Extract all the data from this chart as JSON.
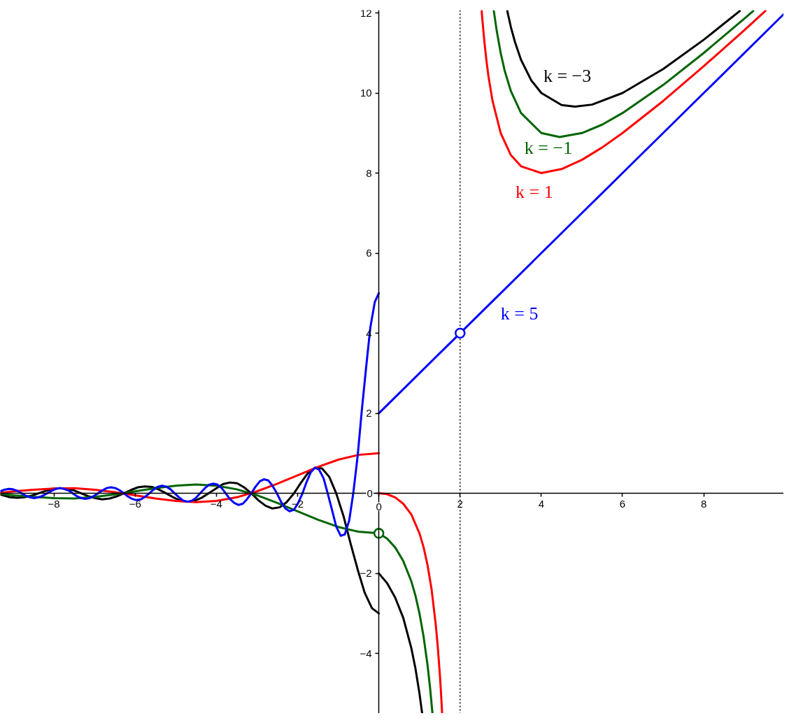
{
  "chart_data": {
    "type": "line",
    "xlim": [
      -9.32,
      9.97
    ],
    "ylim": [
      -5.5,
      12.07
    ],
    "xticks": [
      -8,
      -6,
      -4,
      -2,
      0,
      2,
      4,
      6,
      8
    ],
    "yticks": [
      -4,
      -2,
      0,
      2,
      4,
      6,
      8,
      10,
      12
    ],
    "ref_lines": [
      {
        "axis": "x",
        "value": 2,
        "color": "#000000",
        "line_style": "dotted"
      }
    ],
    "series": [
      {
        "color": "#000000",
        "x": [
          -9.32,
          -9.25,
          -9.08,
          -8.9,
          -8.73,
          -8.55,
          -8.38,
          -8.2,
          -8.03,
          -7.85,
          -7.68,
          -7.5,
          -7.33,
          -7.16,
          -6.98,
          -6.81,
          -6.63,
          -6.46,
          -6.28,
          -6.11,
          -5.93,
          -5.76,
          -5.59,
          -5.41,
          -5.24,
          -5.06,
          -4.89,
          -4.71,
          -4.54,
          -4.36,
          -4.19,
          -4.01,
          -3.84,
          -3.67,
          -3.49,
          -3.32,
          -3.14,
          -2.97,
          -2.79,
          -2.62,
          -2.44,
          -2.27,
          -2.09,
          -1.92,
          -1.75,
          -1.57,
          -1.4,
          -1.22,
          -1.05,
          -0.87,
          -0.7,
          -0.52,
          -0.35,
          -0.17,
          0
        ],
        "values": [
          -0.03,
          -0.05,
          -0.1,
          -0.11,
          -0.1,
          -0.06,
          0,
          0.06,
          0.11,
          0.13,
          0.11,
          0.07,
          0,
          -0.07,
          -0.12,
          -0.15,
          -0.13,
          -0.08,
          0,
          0.08,
          0.15,
          0.17,
          0.16,
          0.09,
          0,
          -0.1,
          -0.18,
          -0.21,
          -0.19,
          -0.11,
          0,
          0.12,
          0.23,
          0.27,
          0.25,
          0.15,
          0,
          -0.17,
          -0.31,
          -0.38,
          -0.35,
          -0.22,
          0,
          0.26,
          0.5,
          0.64,
          0.62,
          0.41,
          0,
          -0.57,
          -1.24,
          -1.91,
          -2.48,
          -2.87,
          -3
        ]
      },
      {
        "color": "#000000",
        "x": [
          0,
          0.2,
          0.4,
          0.6,
          0.8,
          0.9,
          1,
          1.065
        ],
        "values": [
          -2,
          -2.24,
          -2.6,
          -3.11,
          -3.87,
          -4.37,
          -5,
          -5.49
        ]
      },
      {
        "name": "k = −3",
        "color": "#000000",
        "x": [
          3.162,
          3.25,
          3.35,
          3.5,
          3.75,
          4,
          4.5,
          4.83,
          5.25,
          6,
          7,
          8,
          8.889
        ],
        "values": [
          12.05,
          11.65,
          11.28,
          10.83,
          10.32,
          10,
          9.7,
          9.66,
          9.71,
          10,
          10.6,
          11.33,
          12.05
        ]
      },
      {
        "color": "#006400",
        "x": [
          -9.32,
          -9,
          -8.5,
          -8,
          -7.5,
          -7,
          -6.5,
          -6,
          -5.5,
          -5,
          -4.5,
          -4,
          -3.5,
          -3,
          -2.5,
          -2,
          -1.5,
          -1,
          -0.5,
          0,
          0.2,
          0.4,
          0.6,
          0.8,
          0.9,
          1,
          1.1,
          1.2,
          1.26,
          1.319
        ],
        "values": [
          -0.01,
          -0.05,
          -0.09,
          -0.12,
          -0.13,
          -0.09,
          -0.03,
          0.05,
          0.13,
          0.19,
          0.22,
          0.19,
          0.1,
          -0.05,
          -0.24,
          -0.45,
          -0.66,
          -0.84,
          -0.96,
          -1,
          -1.13,
          -1.35,
          -1.69,
          -2.2,
          -2.55,
          -3,
          -3.57,
          -4.3,
          -4.85,
          -5.49
        ]
      },
      {
        "name": "k = −1",
        "color": "#006400",
        "x": [
          2.831,
          2.9,
          3,
          3.1,
          3.25,
          3.5,
          4,
          4.45,
          5,
          5.5,
          6,
          7,
          8,
          9,
          9.219
        ],
        "values": [
          12.05,
          11.57,
          11,
          10.55,
          10.05,
          9.5,
          9,
          8.9,
          9,
          9.21,
          9.5,
          10.2,
          11,
          11.86,
          12.05
        ]
      },
      {
        "color": "#ff0000",
        "x": [
          -9.32,
          -9,
          -8.5,
          -8,
          -7.5,
          -7,
          -6.5,
          -6,
          -5.5,
          -5,
          -4.5,
          -4,
          -3.5,
          -3,
          -2.5,
          -2,
          -1.5,
          -1,
          -0.5,
          0
        ],
        "values": [
          0.01,
          0.05,
          0.09,
          0.12,
          0.13,
          0.09,
          0.03,
          -0.05,
          -0.13,
          -0.19,
          -0.22,
          -0.19,
          -0.1,
          0.05,
          0.24,
          0.45,
          0.66,
          0.84,
          0.96,
          1
        ]
      },
      {
        "color": "#ff0000",
        "x": [
          0,
          0.2,
          0.4,
          0.6,
          0.8,
          1,
          1.1,
          1.2,
          1.3,
          1.4,
          1.45,
          1.5,
          1.53,
          1.558
        ],
        "values": [
          0,
          -0.02,
          -0.1,
          -0.26,
          -0.53,
          -1,
          -1.34,
          -1.8,
          -2.41,
          -3.27,
          -3.82,
          -4.5,
          -4.98,
          -5.49
        ]
      },
      {
        "name": "k = 1",
        "color": "#ff0000",
        "x": [
          2.532,
          2.55,
          2.6,
          2.65,
          2.7,
          2.8,
          3,
          3.25,
          3.5,
          4,
          4.5,
          5,
          5.5,
          6,
          7,
          8,
          9,
          9.518
        ],
        "values": [
          12.05,
          11.82,
          11.27,
          10.8,
          10.41,
          9.8,
          9,
          8.45,
          8.17,
          8,
          8.1,
          8.33,
          8.64,
          9,
          9.8,
          10.67,
          11.57,
          12.05
        ]
      },
      {
        "color": "#0000ff",
        "x": [
          -9.32,
          -9.22,
          -9.11,
          -9.01,
          -8.9,
          -8.8,
          -8.69,
          -8.59,
          -8.48,
          -8.38,
          -8.27,
          -8.17,
          -8.06,
          -7.96,
          -7.85,
          -7.75,
          -7.64,
          -7.54,
          -7.44,
          -7.33,
          -7.23,
          -7.12,
          -7.02,
          -6.91,
          -6.81,
          -6.7,
          -6.6,
          -6.49,
          -6.39,
          -6.28,
          -6.18,
          -6.07,
          -5.97,
          -5.86,
          -5.76,
          -5.65,
          -5.55,
          -5.45,
          -5.34,
          -5.24,
          -5.13,
          -5.03,
          -4.92,
          -4.82,
          -4.71,
          -4.61,
          -4.5,
          -4.4,
          -4.29,
          -4.19,
          -4.08,
          -3.98,
          -3.87,
          -3.77,
          -3.67,
          -3.56,
          -3.46,
          -3.35,
          -3.25,
          -3.14,
          -3.04,
          -2.93,
          -2.83,
          -2.72,
          -2.62,
          -2.51,
          -2.41,
          -2.3,
          -2.2,
          -2.09,
          -1.99,
          -1.88,
          -1.78,
          -1.68,
          -1.57,
          -1.47,
          -1.36,
          -1.26,
          -1.15,
          -1.05,
          -0.94,
          -0.84,
          -0.73,
          -0.63,
          -0.52,
          -0.42,
          -0.31,
          -0.21,
          -0.1,
          0
        ],
        "values": [
          0.05,
          0.09,
          0.11,
          0.1,
          0.06,
          0,
          -0.06,
          -0.1,
          -0.12,
          -0.1,
          -0.06,
          0,
          0.06,
          0.11,
          0.13,
          0.11,
          0.07,
          0,
          -0.07,
          -0.12,
          -0.14,
          -0.12,
          -0.07,
          0,
          0.07,
          0.13,
          0.15,
          0.13,
          0.08,
          0,
          -0.08,
          -0.14,
          -0.17,
          -0.15,
          -0.09,
          0,
          0.09,
          0.16,
          0.19,
          0.17,
          0.1,
          0,
          -0.1,
          -0.18,
          -0.21,
          -0.19,
          -0.11,
          0,
          0.12,
          0.21,
          0.24,
          0.22,
          0.13,
          0,
          -0.14,
          -0.24,
          -0.29,
          -0.26,
          -0.15,
          0,
          0.16,
          0.3,
          0.35,
          0.32,
          0.19,
          0,
          -0.21,
          -0.38,
          -0.45,
          -0.41,
          -0.25,
          0,
          0.28,
          0.52,
          0.64,
          0.59,
          0.37,
          0,
          -0.43,
          -0.83,
          -1.06,
          -1.03,
          -0.68,
          0,
          0.95,
          2.07,
          3.18,
          4.14,
          4.78,
          5
        ]
      },
      {
        "name": "k = 5",
        "color": "#0000ff",
        "x": [
          0,
          1,
          2,
          4,
          6,
          8,
          9.97
        ],
        "values": [
          2,
          3,
          4,
          6,
          8,
          10,
          11.97
        ]
      },
      {
        "type": "scatter",
        "color": "#006400",
        "marker": "circle",
        "x": [
          0
        ],
        "values": [
          -1
        ]
      },
      {
        "type": "scatter",
        "color": "#0000ff",
        "marker": "circle",
        "x": [
          2
        ],
        "values": [
          4
        ]
      }
    ]
  }
}
